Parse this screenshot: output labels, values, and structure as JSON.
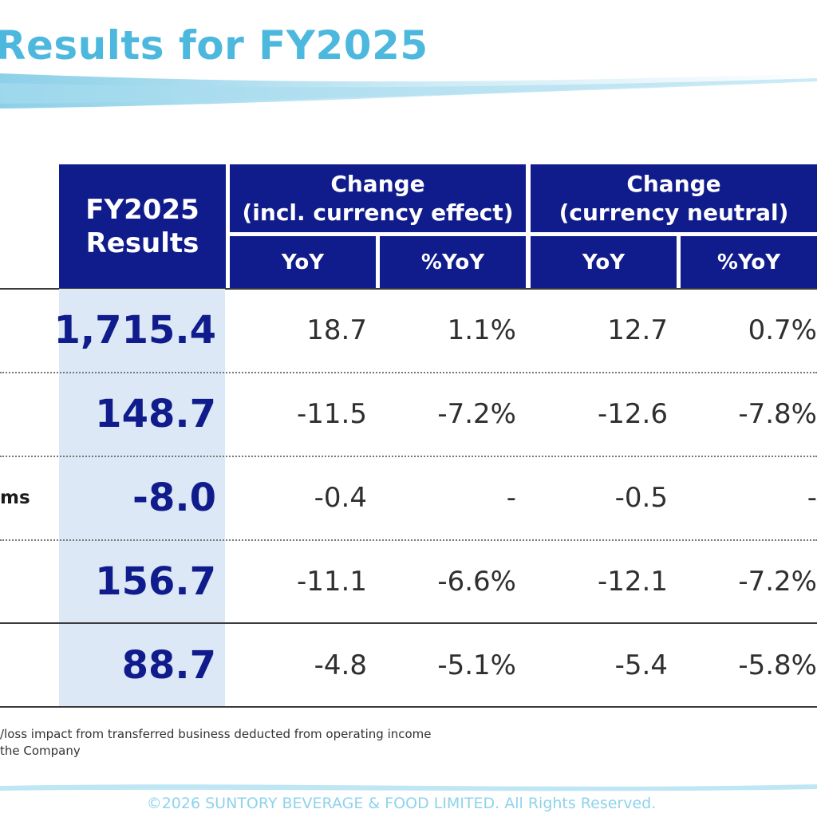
{
  "title": "Results for FY2025",
  "table": {
    "main_col_header": [
      "FY2025",
      "Results"
    ],
    "group_incl": [
      "Change",
      "(incl. currency effect)"
    ],
    "group_neutral": [
      "Change",
      "(currency neutral)"
    ],
    "sub_headers": [
      "YoY",
      "%YoY",
      "YoY",
      "%YoY"
    ],
    "rows": [
      {
        "label": "",
        "value": "1,715.4",
        "cells": [
          "18.7",
          "1.1%",
          "12.7",
          "0.7%"
        ]
      },
      {
        "label": "",
        "value": "148.7",
        "cells": [
          "-11.5",
          "-7.2%",
          "-12.6",
          "-7.8%"
        ]
      },
      {
        "label": "ms",
        "value": "-8.0",
        "cells": [
          "-0.4",
          "-",
          "-0.5",
          "-"
        ]
      },
      {
        "label": "",
        "value": "156.7",
        "cells": [
          "-11.1",
          "-6.6%",
          "-12.1",
          "-7.2%"
        ]
      },
      {
        "label": "",
        "value": "88.7",
        "cells": [
          "-4.8",
          "-5.1%",
          "-5.4",
          "-5.8%"
        ]
      }
    ]
  },
  "notes": [
    "/loss impact from transferred business deducted from operating income",
    "the Company"
  ],
  "copyright": "©2026 SUNTORY BEVERAGE & FOOD LIMITED. All Rights Reserved.",
  "colors": {
    "header": "#101c8c",
    "highlight": "#dce8f5",
    "title": "#4db8dd"
  }
}
